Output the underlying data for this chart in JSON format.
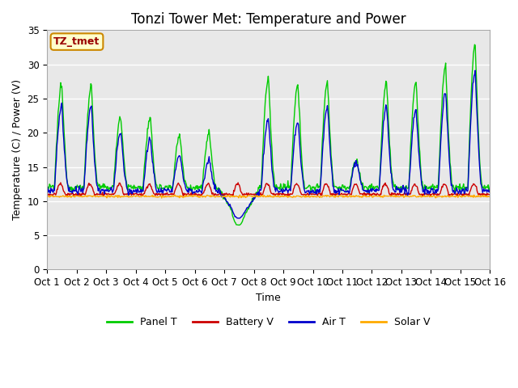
{
  "title": "Tonzi Tower Met: Temperature and Power",
  "xlabel": "Time",
  "ylabel": "Temperature (C) / Power (V)",
  "annotation": "TZ_tmet",
  "ylim": [
    0,
    35
  ],
  "yticks": [
    0,
    5,
    10,
    15,
    20,
    25,
    30,
    35
  ],
  "x_labels": [
    "Oct 1",
    "Oct 2",
    "Oct 3",
    "Oct 4",
    "Oct 5",
    "Oct 6",
    "Oct 7",
    "Oct 8",
    "Oct 9",
    "Oct 10",
    "Oct 11",
    "Oct 12",
    "Oct 13",
    "Oct 14",
    "Oct 15",
    "Oct 16"
  ],
  "colors": {
    "panel_t": "#00cc00",
    "battery_v": "#cc0000",
    "air_t": "#0000cc",
    "solar_v": "#ffaa00"
  },
  "legend_labels": [
    "Panel T",
    "Battery V",
    "Air T",
    "Solar V"
  ],
  "fig_bg": "#ffffff",
  "plot_bg": "#e8e8e8",
  "grid_color": "#ffffff",
  "title_fontsize": 12,
  "axis_fontsize": 9,
  "tick_fontsize": 8.5,
  "n_points": 720,
  "line_width": 1.0
}
